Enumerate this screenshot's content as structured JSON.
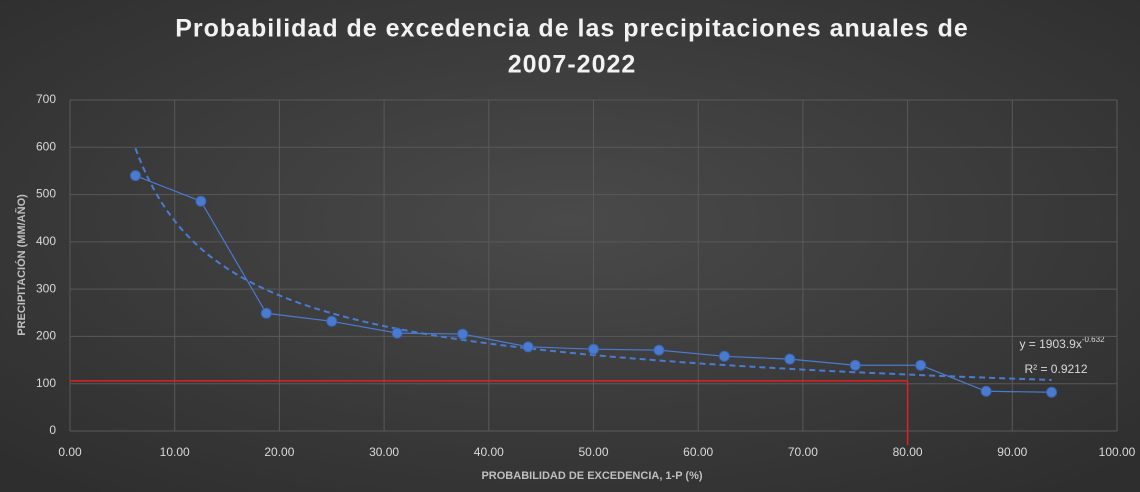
{
  "chart_data": {
    "type": "scatter",
    "title": [
      "Probabilidad de excedencia de las precipitaciones anuales de",
      "2007-2022"
    ],
    "x_label": "PROBABILIDAD DE EXCEDENCIA, 1-P (%)",
    "y_label": "PRECIPITACIÓN (MM/AÑO)",
    "x": [
      6.25,
      12.5,
      18.75,
      25,
      31.25,
      37.5,
      43.75,
      50,
      56.25,
      62.5,
      68.75,
      75,
      81.25,
      87.5,
      93.75
    ],
    "series": [
      {
        "color": "#4a7bd0",
        "values": [
          540,
          486,
          249,
          232,
          207,
          205,
          178,
          173,
          171,
          158,
          152,
          139,
          139,
          84,
          82
        ]
      }
    ],
    "xlim": [
      0,
      100
    ],
    "xticks": [
      {
        "value": 0,
        "label": "0.00"
      },
      {
        "value": 10,
        "label": "10.00"
      },
      {
        "value": 20,
        "label": "20.00"
      },
      {
        "value": 30,
        "label": "30.00"
      },
      {
        "value": 40,
        "label": "40.00"
      },
      {
        "value": 50,
        "label": "50.00"
      },
      {
        "value": 60,
        "label": "60.00"
      },
      {
        "value": 70,
        "label": "70.00"
      },
      {
        "value": 80,
        "label": "80.00"
      },
      {
        "value": 90,
        "label": "90.00"
      },
      {
        "value": 100,
        "label": "100.00"
      }
    ],
    "ylim": [
      0,
      700
    ],
    "yticks": [
      0,
      100,
      200,
      300,
      400,
      500,
      600,
      700
    ],
    "grid": true,
    "trendline": {
      "coefficient": 1903.9,
      "exponent": -0.632,
      "equation": "y = 1903.9x",
      "equation_exponent": "-0.632",
      "r2_label": "R² = 0.9212"
    },
    "reference": {
      "x": 80,
      "y": 106,
      "color": "#e02020"
    }
  }
}
